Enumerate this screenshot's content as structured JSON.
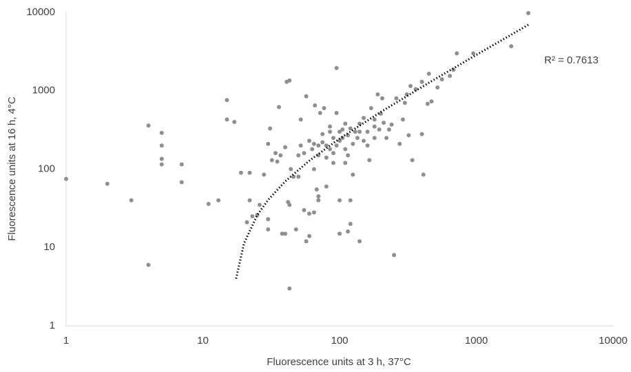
{
  "chart_data": {
    "type": "scatter",
    "x_label": "Fluorescence units at 3 h, 37°C",
    "y_label": "Fluorescence units at 16 h, 4°C",
    "log_x": true,
    "log_y": true,
    "xlim": [
      1,
      10000
    ],
    "xticks": [
      1,
      10,
      100,
      1000,
      10000
    ],
    "ylim": [
      1,
      10000
    ],
    "yticks": [
      1,
      10,
      100,
      1000,
      10000
    ],
    "series": [
      {
        "color": "#8f8f8f",
        "x": [
          1,
          2,
          3,
          4,
          4,
          5,
          5,
          5,
          5,
          7,
          7,
          11,
          13,
          15,
          15,
          17,
          19,
          22,
          21,
          22,
          23,
          25,
          26,
          28,
          30,
          30,
          30,
          31,
          32,
          34,
          35,
          36,
          37,
          38,
          40,
          40,
          41,
          43,
          43,
          43,
          42,
          44,
          46,
          48,
          50,
          50,
          52,
          52,
          55,
          55,
          57,
          57,
          60,
          60,
          60,
          63,
          65,
          65,
          66,
          68,
          70,
          70,
          70,
          72,
          75,
          77,
          80,
          80,
          85,
          85,
          90,
          90,
          95,
          95,
          100,
          100,
          100,
          100,
          105,
          110,
          110,
          115,
          115,
          120,
          120,
          125,
          130,
          135,
          140,
          140,
          150,
          150,
          160,
          165,
          170,
          180,
          180,
          190,
          195,
          200,
          205,
          210,
          220,
          230,
          240,
          250,
          260,
          275,
          290,
          300,
          310,
          320,
          330,
          340,
          360,
          400,
          400,
          410,
          440,
          450,
          470,
          520,
          560,
          640,
          680,
          720,
          950,
          1800,
          2400,
          70,
          75,
          85,
          95,
          105,
          115,
          125,
          140,
          160,
          180,
          120,
          90,
          80,
          65,
          110
        ],
        "values": [
          75,
          65,
          40,
          360,
          6,
          290,
          200,
          135,
          115,
          115,
          68,
          36,
          40,
          760,
          430,
          400,
          90,
          90,
          21,
          40,
          25,
          26,
          35,
          85,
          210,
          23,
          17,
          330,
          130,
          160,
          125,
          620,
          150,
          15,
          190,
          15,
          1300,
          3,
          1350,
          35,
          38,
          100,
          80,
          17,
          80,
          150,
          430,
          200,
          160,
          30,
          12,
          850,
          230,
          14,
          27,
          180,
          100,
          28,
          650,
          55,
          150,
          45,
          40,
          520,
          280,
          600,
          60,
          200,
          350,
          300,
          160,
          250,
          1950,
          520,
          300,
          230,
          40,
          15,
          320,
          180,
          380,
          150,
          16,
          40,
          20,
          85,
          300,
          250,
          12,
          380,
          450,
          230,
          300,
          130,
          600,
          430,
          250,
          900,
          320,
          510,
          800,
          390,
          250,
          320,
          370,
          8,
          800,
          210,
          430,
          700,
          900,
          270,
          1150,
          130,
          1050,
          280,
          1300,
          85,
          680,
          1650,
          730,
          1100,
          1400,
          1550,
          1850,
          3000,
          3000,
          3700,
          9800,
          200,
          220,
          180,
          200,
          250,
          270,
          210,
          300,
          200,
          350,
          330,
          120,
          140,
          210,
          120
        ]
      }
    ],
    "trendline": {
      "color": "#000000",
      "label": "R² = 0.7613",
      "x": [
        17.5,
        20,
        25,
        30,
        40,
        60,
        100,
        200,
        500,
        1000,
        2400
      ],
      "values": [
        4.0,
        11.3,
        25.9,
        40.5,
        69.7,
        128,
        245,
        536,
        1412,
        2870,
        6954
      ]
    }
  }
}
